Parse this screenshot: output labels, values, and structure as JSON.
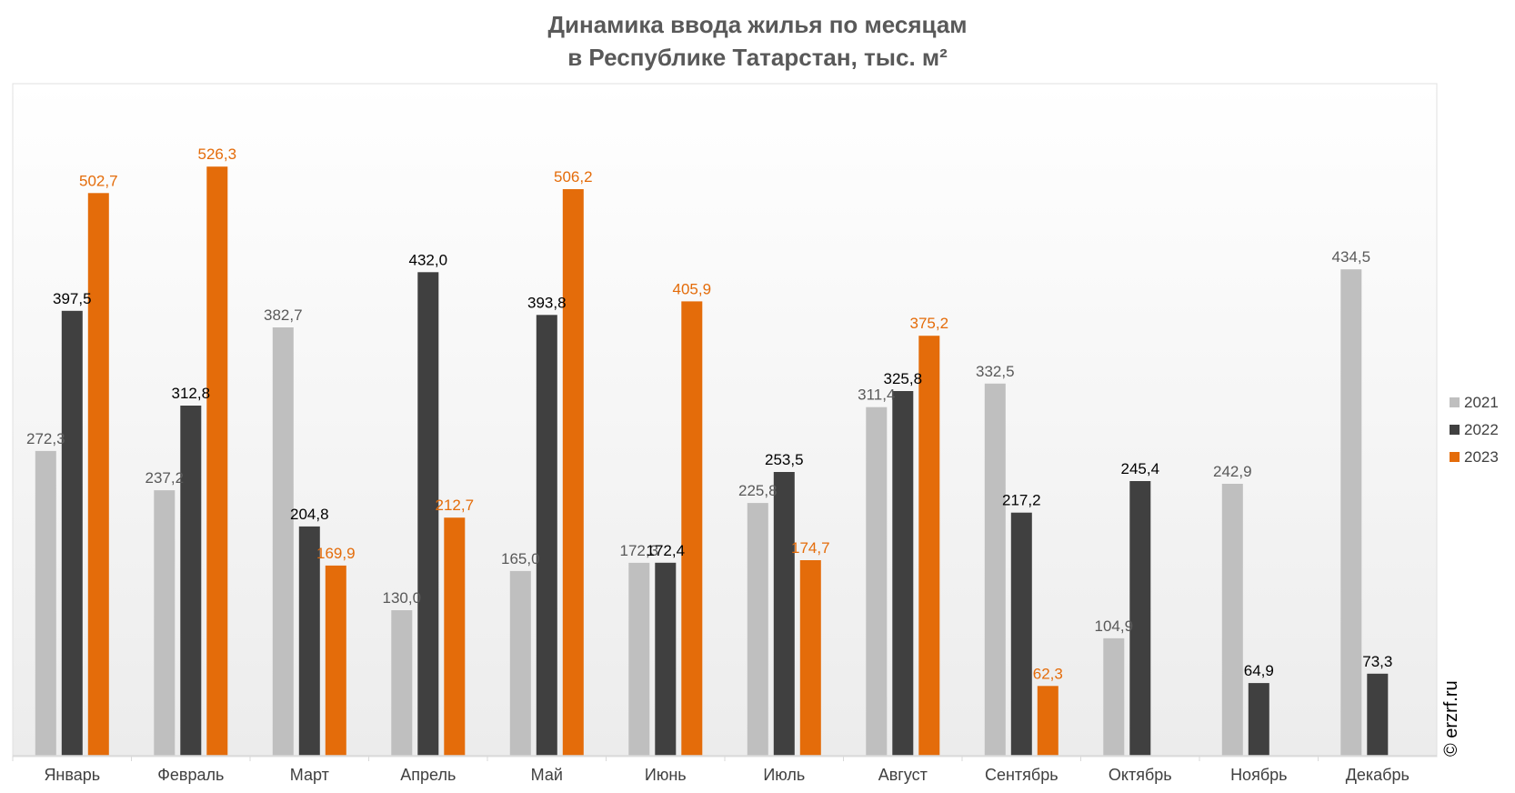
{
  "chart_data": {
    "type": "bar",
    "title": "Динамика ввода жилья по месяцам",
    "subtitle": "в Республике Татарстан, тыс. м²",
    "categories": [
      "Январь",
      "Февраль",
      "Март",
      "Апрель",
      "Май",
      "Июнь",
      "Июль",
      "Август",
      "Сентябрь",
      "Октябрь",
      "Ноябрь",
      "Декабрь"
    ],
    "series": [
      {
        "name": "2021",
        "color": "#bfbfbf",
        "label_color": "#595959",
        "values": [
          272.3,
          237.2,
          382.7,
          130.0,
          165.0,
          172.3,
          225.8,
          311.4,
          332.5,
          104.9,
          242.9,
          434.5
        ],
        "labels": [
          "272,3",
          "237,2",
          "382,7",
          "130,0",
          "165,0",
          "172,3",
          "225,8",
          "311,4",
          "332,5",
          "104,9",
          "242,9",
          "434,5"
        ]
      },
      {
        "name": "2022",
        "color": "#404040",
        "label_color": "#000000",
        "values": [
          397.5,
          312.8,
          204.8,
          432.0,
          393.8,
          172.4,
          253.5,
          325.8,
          217.2,
          245.4,
          64.9,
          73.3
        ],
        "labels": [
          "397,5",
          "312,8",
          "204,8",
          "432,0",
          "393,8",
          "172,4",
          "253,5",
          "325,8",
          "217,2",
          "245,4",
          "64,9",
          "73,3"
        ]
      },
      {
        "name": "2023",
        "color": "#e46c0a",
        "label_color": "#e46c0a",
        "values": [
          502.7,
          526.3,
          169.9,
          212.7,
          506.2,
          405.9,
          174.7,
          375.2,
          62.3,
          null,
          null,
          null
        ],
        "labels": [
          "502,7",
          "526,3",
          "169,9",
          "212,7",
          "506,2",
          "405,9",
          "174,7",
          "375,2",
          "62,3",
          "",
          "",
          ""
        ]
      }
    ],
    "ylim": [
      0,
      600
    ],
    "grid": false,
    "legend": "right",
    "xlabel": "",
    "ylabel": ""
  },
  "watermark": "© erzrf.ru",
  "colors": {
    "axis": "#d9d9d9",
    "plot_gradient_top": "#ffffff",
    "plot_gradient_bottom": "#ececec"
  }
}
